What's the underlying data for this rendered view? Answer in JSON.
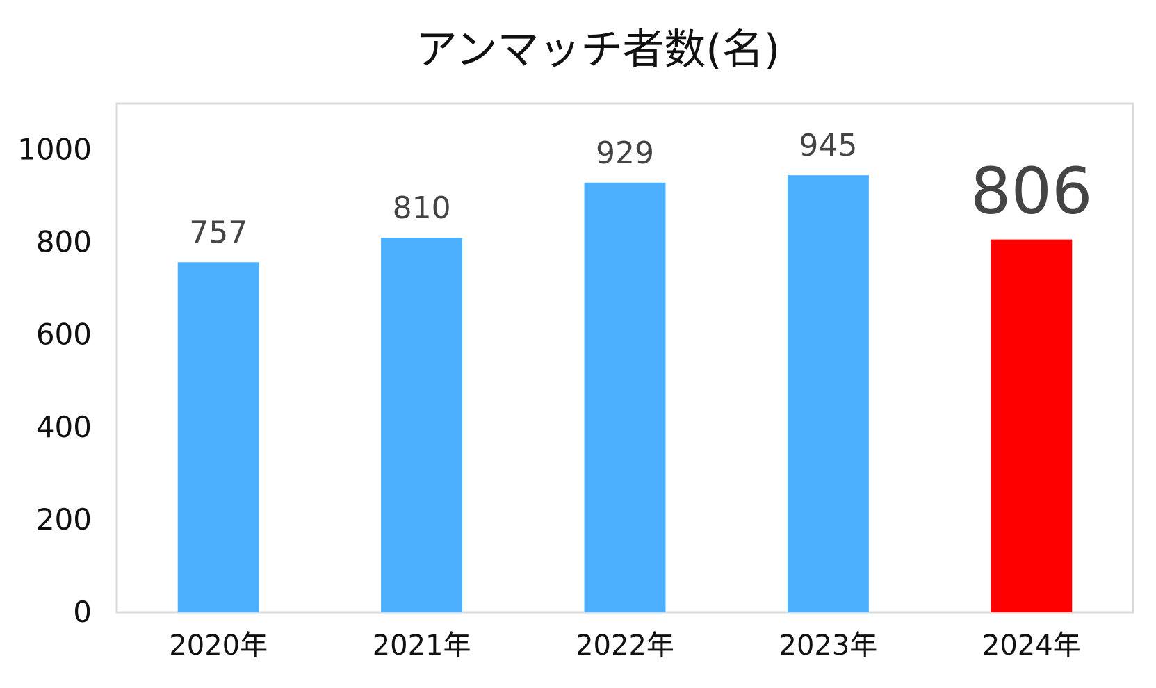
{
  "chart_data": {
    "type": "bar",
    "title": "アンマッチ者数(名)",
    "categories": [
      "2020年",
      "2021年",
      "2022年",
      "2023年",
      "2024年"
    ],
    "values": [
      757,
      810,
      929,
      945,
      806
    ],
    "data_labels": [
      "757",
      "810",
      "929",
      "945",
      "806"
    ],
    "ylim": [
      0,
      1100
    ],
    "yticks": [
      0,
      200,
      400,
      600,
      800,
      1000
    ],
    "ytick_labels": [
      "0",
      "200",
      "400",
      "600",
      "800",
      "1000"
    ],
    "grid": false,
    "legend": "none",
    "highlight_index": 4,
    "colors": {
      "bar": "#4DB0FF",
      "highlight": "#FF0000",
      "frame": "#D9D9D9"
    }
  }
}
